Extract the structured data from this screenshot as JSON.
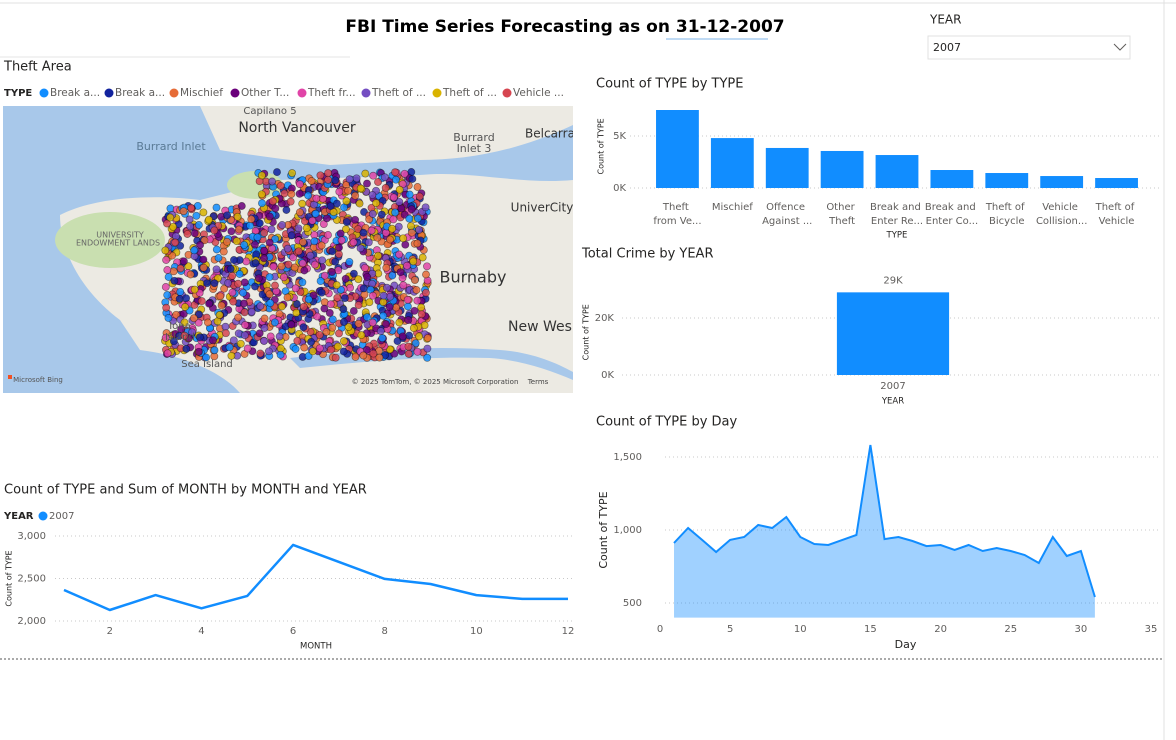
{
  "header": {
    "title": "FBI Time Series Forecasting as on 31-12-2007"
  },
  "slicer": {
    "label": "YEAR",
    "value": "2007"
  },
  "map": {
    "title": "Theft Area",
    "legend_title": "TYPE",
    "legend": [
      {
        "name": "Break a...",
        "color": "#118DFF"
      },
      {
        "name": "Break a...",
        "color": "#12239E"
      },
      {
        "name": "Mischief",
        "color": "#E66C37"
      },
      {
        "name": "Other T...",
        "color": "#6B007B"
      },
      {
        "name": "Theft fr...",
        "color": "#E044A7"
      },
      {
        "name": "Theft of ...",
        "color": "#744EC2"
      },
      {
        "name": "Theft of ...",
        "color": "#D9B300"
      },
      {
        "name": "Vehicle ...",
        "color": "#D64550"
      }
    ],
    "labels": [
      "Capilano 5",
      "North Vancouver",
      "Burrard Inlet",
      "Burrard",
      "Inlet 3",
      "Belcarra",
      "UniverCity",
      "UNIVERSITY",
      "ENDOWMENT LANDS",
      "Burnaby",
      "New Wes",
      "Iona",
      "Island",
      "Sea Island",
      "Microsoft Bing",
      "© 2025 TomTom, © 2025 Microsoft Corporation",
      "Terms"
    ]
  },
  "chart_data": [
    {
      "type": "bar",
      "title": "Count of TYPE by TYPE",
      "x_label": "TYPE",
      "y_label": "Count of TYPE",
      "categories": [
        "Theft from Ve...",
        "Mischief",
        "Offence Against ...",
        "Other Theft",
        "Break and Enter Re...",
        "Break and Enter Co...",
        "Theft of Bicycle",
        "Vehicle Collision...",
        "Theft of Vehicle"
      ],
      "values": [
        7500,
        4800,
        3850,
        3560,
        3170,
        1730,
        1440,
        1150,
        960
      ],
      "color": "#118DFF",
      "ylim": [
        0,
        8000
      ],
      "yticks": [
        {
          "value": 0,
          "label": "0K"
        },
        {
          "value": 5000,
          "label": "5K"
        }
      ],
      "grid": true
    },
    {
      "type": "bar",
      "title": "Total Crime by YEAR",
      "x_label": "YEAR",
      "y_label": "Count of TYPE",
      "categories": [
        "2007"
      ],
      "values": [
        29000
      ],
      "value_labels": [
        "29K"
      ],
      "color": "#118DFF",
      "ylim": [
        0,
        30000
      ],
      "yticks": [
        {
          "value": 0,
          "label": "0K"
        },
        {
          "value": 20000,
          "label": "20K"
        }
      ],
      "grid": true
    },
    {
      "type": "line",
      "title": "Count of TYPE and Sum of MONTH by MONTH and YEAR",
      "x_label": "MONTH",
      "y_label": "Count of TYPE",
      "legend_title": "YEAR",
      "x": [
        1,
        2,
        3,
        4,
        5,
        6,
        7,
        8,
        9,
        10,
        11,
        12
      ],
      "series": [
        {
          "name": "2007",
          "color": "#118DFF",
          "values": [
            2365,
            2130,
            2305,
            2150,
            2295,
            2895,
            2695,
            2495,
            2435,
            2305,
            2260,
            2260
          ]
        }
      ],
      "xlim": [
        1,
        12
      ],
      "xticks": [
        2,
        4,
        6,
        8,
        10,
        12
      ],
      "ylim": [
        2000,
        3000
      ],
      "yticks": [
        {
          "value": 2000,
          "label": "2,000"
        },
        {
          "value": 2500,
          "label": "2,500"
        },
        {
          "value": 3000,
          "label": "3,000"
        }
      ],
      "grid": true
    },
    {
      "type": "area",
      "title": "Count of TYPE by Day",
      "x_label": "Day",
      "y_label": "Count of TYPE",
      "x": [
        1,
        2,
        3,
        4,
        5,
        6,
        7,
        8,
        9,
        10,
        11,
        12,
        13,
        14,
        15,
        16,
        17,
        18,
        19,
        20,
        21,
        22,
        23,
        24,
        25,
        26,
        27,
        28,
        29,
        30,
        31
      ],
      "values": [
        911,
        1014,
        932,
        849,
        932,
        952,
        1034,
        1014,
        1089,
        952,
        904,
        897,
        932,
        966,
        1582,
        938,
        952,
        925,
        890,
        897,
        863,
        897,
        856,
        877,
        856,
        829,
        774,
        952,
        822,
        856,
        541
      ],
      "color": "#118DFF",
      "xlim": [
        0,
        35
      ],
      "xticks": [
        0,
        5,
        10,
        15,
        20,
        25,
        30,
        35
      ],
      "ylim": [
        400,
        1600
      ],
      "yticks": [
        500,
        {
          "value": 1000,
          "label": "1,000"
        },
        {
          "value": 1500,
          "label": "1,500"
        }
      ],
      "grid": true
    }
  ]
}
